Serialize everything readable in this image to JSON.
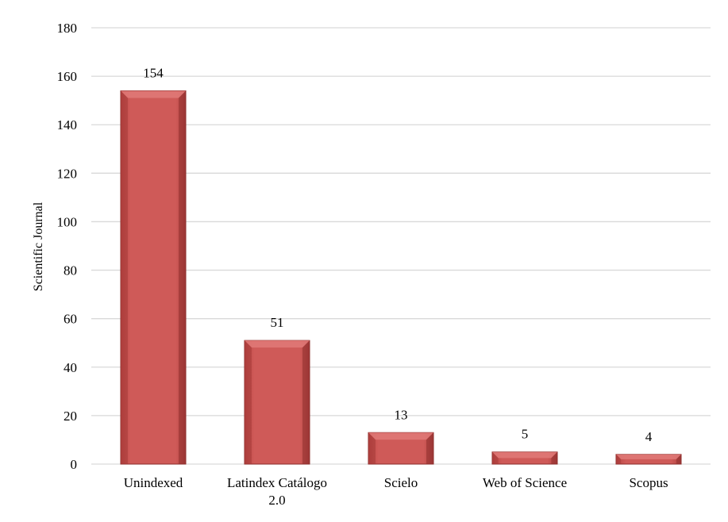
{
  "chart_data": {
    "type": "bar",
    "categories": [
      "Unindexed",
      "Latindex Catálogo 2.0",
      "Scielo",
      "Web of Science",
      "Scopus"
    ],
    "category_lines": [
      [
        "Unindexed"
      ],
      [
        "Latindex Catálogo",
        "2.0"
      ],
      [
        "Scielo"
      ],
      [
        "Web of Science"
      ],
      [
        "Scopus"
      ]
    ],
    "values": [
      154,
      51,
      13,
      5,
      4
    ],
    "data_labels": [
      "154",
      "51",
      "13",
      "5",
      "4"
    ],
    "ylabel": "Scientific Journal",
    "xlabel": "",
    "title": "",
    "ylim": [
      0,
      180
    ],
    "yticks": [
      0,
      20,
      40,
      60,
      80,
      100,
      120,
      140,
      160,
      180
    ],
    "grid": true,
    "legend": "none",
    "colors": {
      "bar_fill": "#cd5553",
      "bar_light": "#e07a78",
      "bar_dark": "#8e2f2d",
      "grid": "#d9d9d9"
    }
  }
}
